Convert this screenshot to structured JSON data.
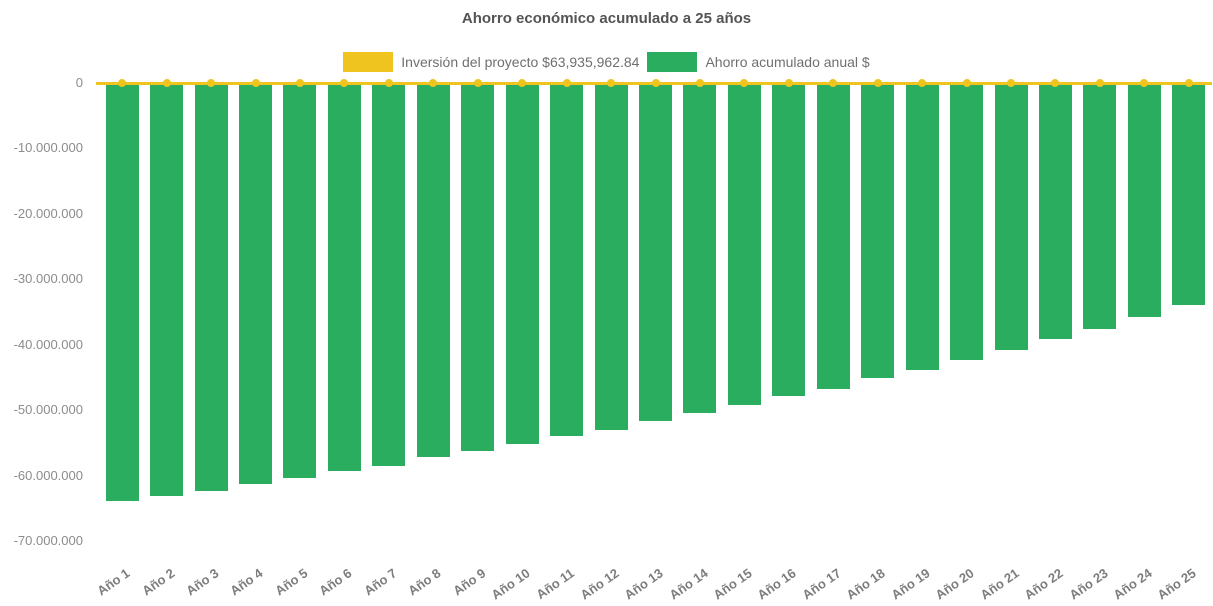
{
  "colors": {
    "background": "#FFFFFF",
    "title_text": "#545454",
    "legend_text": "#6F6F6F",
    "y_axis_text": "#8C8C8C",
    "x_axis_text": "#7D7D7D",
    "investment_yellow": "#F0C41F",
    "savings_green": "#2BAD60"
  },
  "chart_data": {
    "type": "bar",
    "title": "Ahorro económico acumulado a 25 años",
    "xlabel": "",
    "ylabel": "",
    "ylim": [
      -70000000,
      0
    ],
    "grid": false,
    "legend_position": "top-center",
    "ytick_labels": [
      "0",
      "-10.000.000",
      "-20.000.000",
      "-30.000.000",
      "-40.000.000",
      "-50.000.000",
      "-60.000.000",
      "-70.000.000"
    ],
    "categories": [
      "Año 1",
      "Año 2",
      "Año 3",
      "Año 4",
      "Año 5",
      "Año 6",
      "Año 7",
      "Año 8",
      "Año 9",
      "Año 10",
      "Año 11",
      "Año 12",
      "Año 13",
      "Año 14",
      "Año 15",
      "Año 16",
      "Año 17",
      "Año 18",
      "Año 19",
      "Año 20",
      "Año 21",
      "Año 22",
      "Año 23",
      "Año 24",
      "Año 25"
    ],
    "series": [
      {
        "name": "Inversión del proyecto $63,935,962.84",
        "type": "line",
        "color": "#F0C41F",
        "marker": "circle",
        "values": [
          0,
          0,
          0,
          0,
          0,
          0,
          0,
          0,
          0,
          0,
          0,
          0,
          0,
          0,
          0,
          0,
          0,
          0,
          0,
          0,
          0,
          0,
          0,
          0,
          0
        ]
      },
      {
        "name": "Ahorro acumulado anual $",
        "type": "column",
        "color": "#2BAD60",
        "values": [
          -63900000,
          -63100000,
          -62400000,
          -61300000,
          -60300000,
          -59300000,
          -58500000,
          -57200000,
          -56300000,
          -55100000,
          -53900000,
          -53000000,
          -51700000,
          -50500000,
          -49200000,
          -47800000,
          -46700000,
          -45100000,
          -43800000,
          -42300000,
          -40800000,
          -39100000,
          -37600000,
          -35700000,
          -34000000
        ]
      }
    ]
  }
}
